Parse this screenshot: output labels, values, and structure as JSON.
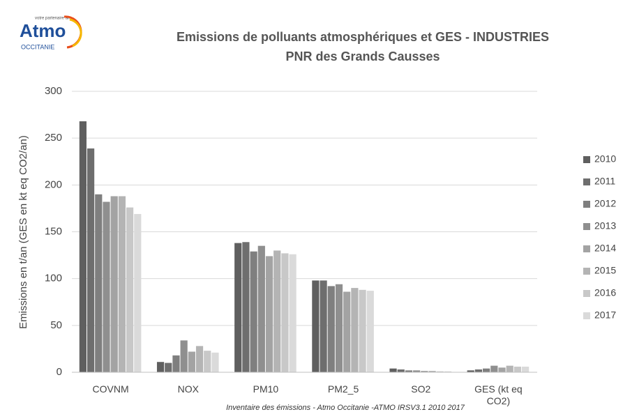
{
  "logo": {
    "name": "Atmo",
    "region": "OCCITANIE",
    "tagline": "votre partenaire air"
  },
  "chart_data": {
    "type": "bar",
    "title": "Emissions de polluants atmosphériques et GES - INDUSTRIES",
    "subtitle": "PNR des Grands Causses",
    "y_label": "Emissions en t/an (GES en kt eq CO2/an)",
    "source": "Inventaire des émissions - Atmo Occitanie -ATMO  IRSV3.1  2010  2017",
    "categories": [
      "COVNM",
      "NOX",
      "PM10",
      "PM2_5",
      "SO2",
      "GES (kt eq CO2)"
    ],
    "series": [
      {
        "name": "2010",
        "color": "#5f5f5f",
        "values": [
          268,
          11,
          138,
          98,
          4,
          2
        ]
      },
      {
        "name": "2011",
        "color": "#6e6e6e",
        "values": [
          239,
          10,
          139,
          98,
          3,
          3
        ]
      },
      {
        "name": "2012",
        "color": "#7f7f7f",
        "values": [
          190,
          18,
          129,
          92,
          2,
          4
        ]
      },
      {
        "name": "2013",
        "color": "#8f8f8f",
        "values": [
          182,
          34,
          135,
          94,
          2,
          7
        ]
      },
      {
        "name": "2014",
        "color": "#a3a3a3",
        "values": [
          188,
          22,
          124,
          86,
          1.5,
          5
        ]
      },
      {
        "name": "2015",
        "color": "#b4b4b4",
        "values": [
          188,
          28,
          130,
          90,
          1.5,
          7
        ]
      },
      {
        "name": "2016",
        "color": "#c8c8c8",
        "values": [
          176,
          23,
          127,
          88,
          1,
          6
        ]
      },
      {
        "name": "2017",
        "color": "#dadada",
        "values": [
          169,
          21,
          126,
          87,
          1,
          6
        ]
      }
    ],
    "ylim": [
      0,
      300
    ],
    "yticks": [
      0,
      50,
      100,
      150,
      200,
      250,
      300
    ],
    "grid": true,
    "legend": "right"
  }
}
